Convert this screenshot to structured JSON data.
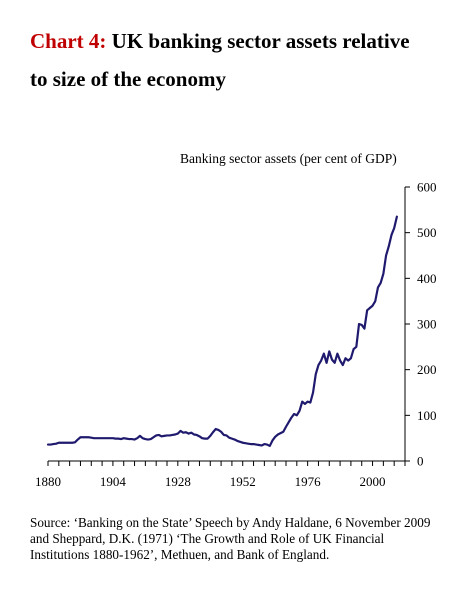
{
  "title": {
    "prefix": "Chart 4:",
    "line1": "UK banking sector assets relative",
    "line2": "to size of the economy"
  },
  "source": "Source: ‘Banking on the State’ Speech by Andy Haldane, 6 November 2009 and Sheppard, D.K. (1971) ‘The Growth and Role of UK Financial Institutions 1880-1962’, Methuen, and Bank of England.",
  "chart_data": {
    "type": "line",
    "ylabel": "Banking sector assets (per cent of GDP)",
    "xlim": [
      1880,
      2012
    ],
    "ylim": [
      0,
      600
    ],
    "x_ticks": [
      1880,
      1904,
      1928,
      1952,
      1976,
      2000
    ],
    "y_ticks": [
      0,
      100,
      200,
      300,
      400,
      500,
      600
    ],
    "y_axis_side": "right",
    "grid": false,
    "legend": "none",
    "line_color": "#1f1a6e",
    "series": [
      {
        "x": [
          1880,
          1881,
          1882,
          1883,
          1884,
          1885,
          1886,
          1887,
          1888,
          1889,
          1890,
          1891,
          1892,
          1893,
          1894,
          1895,
          1896,
          1897,
          1898,
          1899,
          1900,
          1901,
          1902,
          1903,
          1904,
          1905,
          1906,
          1907,
          1908,
          1909,
          1910,
          1911,
          1912,
          1913,
          1914,
          1915,
          1916,
          1917,
          1918,
          1919,
          1920,
          1921,
          1922,
          1923,
          1924,
          1925,
          1926,
          1927,
          1928,
          1929,
          1930,
          1931,
          1932,
          1933,
          1934,
          1935,
          1936,
          1937,
          1938,
          1939,
          1940,
          1941,
          1942,
          1943,
          1944,
          1945,
          1946,
          1947,
          1948,
          1949,
          1950,
          1951,
          1952,
          1953,
          1954,
          1955,
          1956,
          1957,
          1958,
          1959,
          1960,
          1961,
          1962,
          1963,
          1964,
          1965,
          1966,
          1967,
          1968,
          1969,
          1970,
          1971,
          1972,
          1973,
          1974,
          1975,
          1976,
          1977,
          1978,
          1979,
          1980,
          1981,
          1982,
          1983,
          1984,
          1985,
          1986,
          1987,
          1988,
          1989,
          1990,
          1991,
          1992,
          1993,
          1994,
          1995,
          1996,
          1997,
          1998,
          1999,
          2000,
          2001,
          2002,
          2003,
          2004,
          2005,
          2006,
          2007,
          2008,
          2009
        ],
        "y": [
          36,
          36,
          37,
          38,
          40,
          40,
          40,
          40,
          40,
          40,
          41,
          47,
          52,
          52,
          52,
          52,
          51,
          50,
          50,
          50,
          50,
          50,
          50,
          50,
          50,
          49,
          49,
          48,
          50,
          49,
          48,
          48,
          47,
          50,
          55,
          50,
          48,
          47,
          48,
          52,
          56,
          57,
          54,
          55,
          56,
          56,
          57,
          58,
          60,
          66,
          62,
          63,
          60,
          62,
          58,
          57,
          54,
          50,
          49,
          49,
          55,
          63,
          70,
          68,
          64,
          57,
          56,
          51,
          49,
          47,
          44,
          42,
          40,
          39,
          38,
          37,
          37,
          36,
          35,
          34,
          37,
          36,
          33,
          45,
          53,
          58,
          61,
          64,
          75,
          85,
          95,
          103,
          100,
          110,
          130,
          125,
          130,
          128,
          150,
          190,
          210,
          220,
          235,
          215,
          240,
          222,
          215,
          235,
          220,
          210,
          225,
          220,
          225,
          245,
          250,
          300,
          298,
          290,
          330,
          335,
          340,
          350,
          380,
          390,
          410,
          450,
          470,
          495,
          510,
          535
        ]
      }
    ]
  }
}
